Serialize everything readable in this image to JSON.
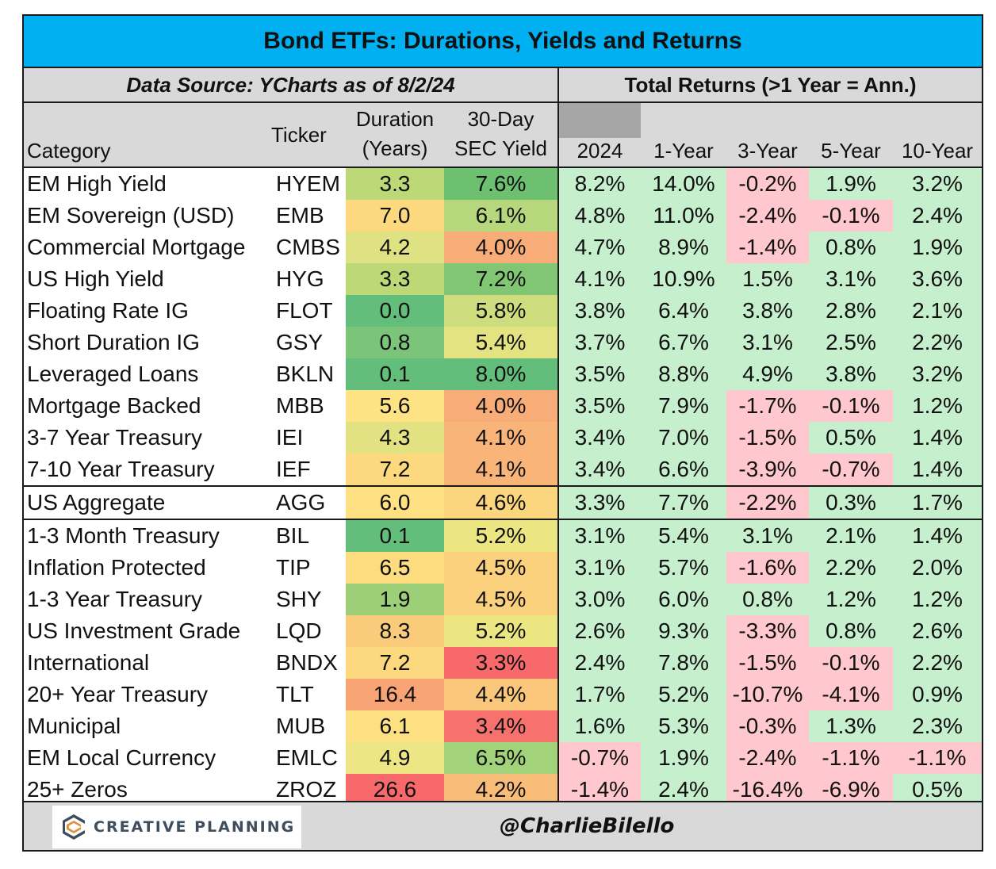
{
  "title": "Bond ETFs: Durations, Yields and Returns",
  "source_label": "Data Source: YCharts as of 8/2/24",
  "returns_label": "Total Returns (>1 Year = Ann.)",
  "headers": {
    "category": "Category",
    "ticker": "Ticker",
    "duration_line1": "Duration",
    "duration_line2": "(Years)",
    "yield_line1": "30-Day",
    "yield_line2": "SEC Yield",
    "r2024": "2024",
    "r1y": "1-Year",
    "r3y": "3-Year",
    "r5y": "5-Year",
    "r10y": "10-Year"
  },
  "colors": {
    "title_bg": "#00b0f0",
    "header_bg": "#d9d9d9",
    "positive": "#c6efce",
    "negative": "#ffc7ce"
  },
  "chart_data": {
    "type": "table",
    "title": "Bond ETFs: Durations, Yields and Returns",
    "columns": [
      "Category",
      "Ticker",
      "Duration (Years)",
      "30-Day SEC Yield",
      "2024",
      "1-Year",
      "3-Year",
      "5-Year",
      "10-Year"
    ],
    "rows": [
      {
        "category": "EM High Yield",
        "ticker": "HYEM",
        "duration": "3.3",
        "yield": "7.6%",
        "r2024": "8.2%",
        "r1y": "14.0%",
        "r3y": "-0.2%",
        "r5y": "1.9%",
        "r10y": "3.2%",
        "dur_color": "#bcd877",
        "yld_color": "#6cc070"
      },
      {
        "category": "EM Sovereign (USD)",
        "ticker": "EMB",
        "duration": "7.0",
        "yield": "6.1%",
        "r2024": "4.8%",
        "r1y": "11.0%",
        "r3y": "-2.4%",
        "r5y": "-0.1%",
        "r10y": "2.4%",
        "dur_color": "#fcd87e",
        "yld_color": "#b7d77c"
      },
      {
        "category": "Commercial Mortgage",
        "ticker": "CMBS",
        "duration": "4.2",
        "yield": "4.0%",
        "r2024": "4.7%",
        "r1y": "8.9%",
        "r3y": "-1.4%",
        "r5y": "0.8%",
        "r10y": "1.9%",
        "dur_color": "#dfe283",
        "yld_color": "#f8ac78"
      },
      {
        "category": "US High Yield",
        "ticker": "HYG",
        "duration": "3.3",
        "yield": "7.2%",
        "r2024": "4.1%",
        "r1y": "10.9%",
        "r3y": "1.5%",
        "r5y": "3.1%",
        "r10y": "3.6%",
        "dur_color": "#bcd877",
        "yld_color": "#81c673"
      },
      {
        "category": "Floating Rate IG",
        "ticker": "FLOT",
        "duration": "0.0",
        "yield": "5.8%",
        "r2024": "3.8%",
        "r1y": "6.4%",
        "r3y": "3.8%",
        "r5y": "2.8%",
        "r10y": "2.1%",
        "dur_color": "#63be7b",
        "yld_color": "#cedd7e"
      },
      {
        "category": "Short Duration IG",
        "ticker": "GSY",
        "duration": "0.8",
        "yield": "5.4%",
        "r2024": "3.7%",
        "r1y": "6.7%",
        "r3y": "3.1%",
        "r5y": "2.5%",
        "r10y": "2.2%",
        "dur_color": "#7ac57a",
        "yld_color": "#e3e382"
      },
      {
        "category": "Leveraged Loans",
        "ticker": "BKLN",
        "duration": "0.1",
        "yield": "8.0%",
        "r2024": "3.5%",
        "r1y": "8.8%",
        "r3y": "4.9%",
        "r5y": "3.8%",
        "r10y": "3.2%",
        "dur_color": "#63be7b",
        "yld_color": "#63be7b"
      },
      {
        "category": "Mortgage Backed",
        "ticker": "MBB",
        "duration": "5.6",
        "yield": "4.0%",
        "r2024": "3.5%",
        "r1y": "7.9%",
        "r3y": "-1.7%",
        "r5y": "-0.1%",
        "r10y": "1.2%",
        "dur_color": "#fde383",
        "yld_color": "#f8ac78"
      },
      {
        "category": "3-7 Year Treasury",
        "ticker": "IEI",
        "duration": "4.3",
        "yield": "4.1%",
        "r2024": "3.4%",
        "r1y": "7.0%",
        "r3y": "-1.5%",
        "r5y": "0.5%",
        "r10y": "1.4%",
        "dur_color": "#e2e282",
        "yld_color": "#f9b479"
      },
      {
        "category": "7-10 Year Treasury",
        "ticker": "IEF",
        "duration": "7.2",
        "yield": "4.1%",
        "r2024": "3.4%",
        "r1y": "6.6%",
        "r3y": "-3.9%",
        "r5y": "-0.7%",
        "r10y": "1.4%",
        "dur_color": "#fcd87e",
        "yld_color": "#f9b479"
      },
      {
        "category": "US Aggregate",
        "ticker": "AGG",
        "duration": "6.0",
        "yield": "4.6%",
        "r2024": "3.3%",
        "r1y": "7.7%",
        "r3y": "-2.2%",
        "r5y": "0.3%",
        "r10y": "1.7%",
        "dur_color": "#fde182",
        "yld_color": "#fcd67e"
      },
      {
        "category": "1-3 Month Treasury",
        "ticker": "BIL",
        "duration": "0.1",
        "yield": "5.2%",
        "r2024": "3.1%",
        "r1y": "5.4%",
        "r3y": "3.1%",
        "r5y": "2.1%",
        "r10y": "1.4%",
        "dur_color": "#63be7b",
        "yld_color": "#ebe582"
      },
      {
        "category": "Inflation Protected",
        "ticker": "TIP",
        "duration": "6.5",
        "yield": "4.5%",
        "r2024": "3.1%",
        "r1y": "5.7%",
        "r3y": "-1.6%",
        "r5y": "2.2%",
        "r10y": "2.0%",
        "dur_color": "#fddc80",
        "yld_color": "#fbd17d"
      },
      {
        "category": "1-3 Year Treasury",
        "ticker": "SHY",
        "duration": "1.9",
        "yield": "4.5%",
        "r2024": "3.0%",
        "r1y": "6.0%",
        "r3y": "0.8%",
        "r5y": "1.2%",
        "r10y": "1.2%",
        "dur_color": "#9ccf77",
        "yld_color": "#fbd17d"
      },
      {
        "category": "US Investment Grade",
        "ticker": "LQD",
        "duration": "8.3",
        "yield": "5.2%",
        "r2024": "2.6%",
        "r1y": "9.3%",
        "r3y": "-3.3%",
        "r5y": "0.8%",
        "r10y": "2.6%",
        "dur_color": "#fbcb7c",
        "yld_color": "#ebe582"
      },
      {
        "category": "International",
        "ticker": "BNDX",
        "duration": "7.2",
        "yield": "3.3%",
        "r2024": "2.4%",
        "r1y": "7.8%",
        "r3y": "-1.5%",
        "r5y": "-0.1%",
        "r10y": "2.2%",
        "dur_color": "#fcd87e",
        "yld_color": "#f8696b"
      },
      {
        "category": "20+ Year Treasury",
        "ticker": "TLT",
        "duration": "16.4",
        "yield": "4.4%",
        "r2024": "1.7%",
        "r1y": "5.2%",
        "r3y": "-10.7%",
        "r5y": "-4.1%",
        "r10y": "0.9%",
        "dur_color": "#f9a474",
        "yld_color": "#fbc87b"
      },
      {
        "category": "Municipal",
        "ticker": "MUB",
        "duration": "6.1",
        "yield": "3.4%",
        "r2024": "1.6%",
        "r1y": "5.3%",
        "r3y": "-0.3%",
        "r5y": "1.3%",
        "r10y": "2.3%",
        "dur_color": "#fde082",
        "yld_color": "#f8726d"
      },
      {
        "category": "EM Local Currency",
        "ticker": "EMLC",
        "duration": "4.9",
        "yield": "6.5%",
        "r2024": "-0.7%",
        "r1y": "1.9%",
        "r3y": "-2.4%",
        "r5y": "-1.1%",
        "r10y": "-1.1%",
        "dur_color": "#eee585",
        "yld_color": "#a2d27a"
      },
      {
        "category": "25+ Zeros",
        "ticker": "ZROZ",
        "duration": "26.6",
        "yield": "4.2%",
        "r2024": "-1.4%",
        "r1y": "2.4%",
        "r3y": "-16.4%",
        "r5y": "-6.9%",
        "r10y": "0.5%",
        "dur_color": "#f8696b",
        "yld_color": "#f9bd7a"
      }
    ]
  },
  "footer": {
    "brand": "CREATIVE PLANNING",
    "handle": "@CharlieBilello",
    "brand_mark_icon": "creative-planning-logo-icon"
  }
}
